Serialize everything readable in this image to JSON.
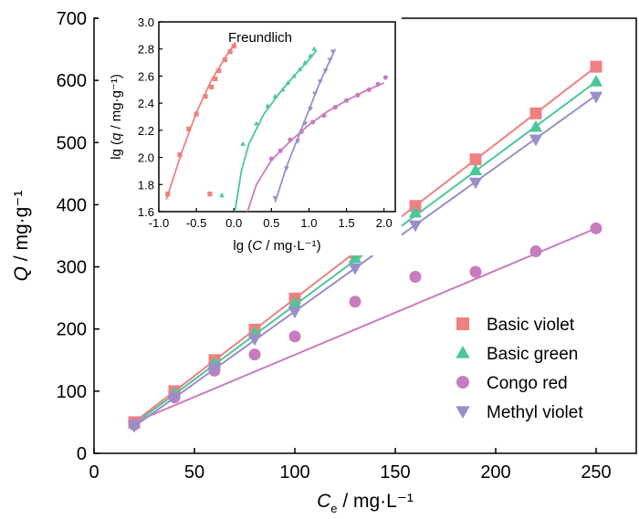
{
  "chart_data": [
    {
      "type": "scatter",
      "xlabel": {
        "main": "C",
        "sub": "e",
        "units": " / mg·L⁻¹"
      },
      "ylabel": {
        "main": "Q",
        "units": " / mg·g⁻¹"
      },
      "xlim": [
        0,
        270
      ],
      "ylim": [
        0,
        700
      ],
      "xticks": [
        0,
        50,
        100,
        150,
        200,
        250
      ],
      "yticks": [
        0,
        100,
        200,
        300,
        400,
        500,
        600,
        700
      ],
      "legend_position": "bottom-right",
      "series": [
        {
          "name": "Basic violet",
          "marker": "square",
          "color": "#f08080",
          "x": [
            20,
            40,
            60,
            80,
            100,
            130,
            160,
            190,
            220,
            250
          ],
          "y": [
            50,
            100,
            150,
            199,
            249,
            323,
            398,
            473,
            547,
            622
          ],
          "fit": [
            [
              20,
              50
            ],
            [
              250,
              622
            ]
          ]
        },
        {
          "name": "Basic green",
          "marker": "triangle-up",
          "color": "#4cc79a",
          "x": [
            20,
            40,
            60,
            80,
            100,
            130,
            160,
            190,
            220,
            250
          ],
          "y": [
            48,
            97,
            145,
            194,
            242,
            314,
            387,
            455,
            525,
            598
          ],
          "fit": [
            [
              20,
              47
            ],
            [
              250,
              598
            ]
          ]
        },
        {
          "name": "Congo red",
          "marker": "circle",
          "color": "#c97bbf",
          "x": [
            20,
            40,
            60,
            80,
            100,
            130,
            160,
            190,
            220,
            250
          ],
          "y": [
            46,
            90,
            133,
            159,
            188,
            244,
            284,
            292,
            325,
            362
          ],
          "fit": [
            [
              20,
              50
            ],
            [
              250,
              362
            ]
          ]
        },
        {
          "name": "Methyl violet",
          "marker": "triangle-down",
          "color": "#9a8ec8",
          "x": [
            20,
            40,
            60,
            80,
            100,
            130,
            160,
            190,
            220,
            250
          ],
          "y": [
            44,
            90,
            138,
            184,
            228,
            298,
            367,
            436,
            505,
            574
          ],
          "fit": [
            [
              20,
              43
            ],
            [
              250,
              576
            ]
          ]
        }
      ]
    },
    {
      "type": "scatter",
      "title": "Freundlich",
      "xlabel": {
        "main": "lg (",
        "italic": "C",
        "units": " / mg·L⁻¹)"
      },
      "ylabel": {
        "main": "lg (",
        "italic": "q",
        "units": " / mg·g⁻¹)"
      },
      "xlim": [
        -1.0,
        2.15
      ],
      "ylim": [
        1.6,
        3.0
      ],
      "xticks": [
        -1.0,
        -0.5,
        0.0,
        0.5,
        1.0,
        1.5,
        2.0
      ],
      "xtick_labels": [
        "-1.0",
        "-0.5",
        "0.0",
        "0.5",
        "1.0",
        "1.5",
        "2.0"
      ],
      "yticks": [
        1.6,
        1.8,
        2.0,
        2.2,
        2.4,
        2.6,
        2.8,
        3.0
      ],
      "ytick_labels": [
        "1.6",
        "1.8",
        "2.0",
        "2.2",
        "2.4",
        "2.6",
        "2.8",
        "3.0"
      ],
      "series": [
        {
          "name": "Basic violet",
          "marker": "square",
          "color": "#f08080",
          "x": [
            -0.88,
            -0.72,
            -0.6,
            -0.5,
            -0.38,
            -0.3,
            -0.25,
            -0.2,
            -0.12,
            -0.05,
            0.0,
            -0.32
          ],
          "y": [
            1.73,
            2.02,
            2.21,
            2.32,
            2.45,
            2.52,
            2.58,
            2.64,
            2.72,
            2.78,
            2.82,
            1.73
          ],
          "fit": [
            [
              -0.9,
              1.69
            ],
            [
              -0.7,
              2.03
            ],
            [
              -0.5,
              2.33
            ],
            [
              -0.3,
              2.57
            ],
            [
              -0.1,
              2.75
            ],
            [
              0.02,
              2.85
            ]
          ]
        },
        {
          "name": "Basic green",
          "marker": "triangle-up",
          "color": "#4cc79a",
          "x": [
            -0.16,
            0.12,
            0.3,
            0.45,
            0.55,
            0.65,
            0.72,
            0.8,
            0.88,
            0.95,
            1.02,
            1.07
          ],
          "y": [
            1.72,
            2.1,
            2.25,
            2.38,
            2.45,
            2.5,
            2.55,
            2.6,
            2.65,
            2.7,
            2.75,
            2.8
          ],
          "fit": [
            [
              0.0,
              1.55
            ],
            [
              0.1,
              1.9
            ],
            [
              0.2,
              2.1
            ],
            [
              0.4,
              2.32
            ],
            [
              0.6,
              2.47
            ],
            [
              0.8,
              2.6
            ],
            [
              1.0,
              2.72
            ],
            [
              1.1,
              2.79
            ]
          ]
        },
        {
          "name": "Congo red",
          "marker": "circle",
          "color": "#c97bbf",
          "x": [
            0.5,
            0.62,
            0.75,
            0.9,
            1.05,
            1.2,
            1.35,
            1.5,
            1.65,
            1.8,
            1.92,
            2.02
          ],
          "y": [
            1.99,
            2.05,
            2.13,
            2.19,
            2.26,
            2.31,
            2.37,
            2.42,
            2.46,
            2.5,
            2.54,
            2.59
          ],
          "fit": [
            [
              0.18,
              1.6
            ],
            [
              0.3,
              1.8
            ],
            [
              0.5,
              1.98
            ],
            [
              0.75,
              2.12
            ],
            [
              1.0,
              2.24
            ],
            [
              1.25,
              2.34
            ],
            [
              1.5,
              2.42
            ],
            [
              1.75,
              2.49
            ],
            [
              2.0,
              2.55
            ]
          ]
        },
        {
          "name": "Methyl violet",
          "marker": "triangle-down",
          "color": "#9a8ec8",
          "x": [
            0.55,
            0.7,
            0.85,
            0.95,
            1.02,
            1.08,
            1.15,
            1.22,
            1.28,
            1.32
          ],
          "y": [
            1.7,
            1.92,
            2.12,
            2.25,
            2.36,
            2.47,
            2.56,
            2.64,
            2.72,
            2.78
          ],
          "fit": [
            [
              0.55,
              1.67
            ],
            [
              0.7,
              1.93
            ],
            [
              0.85,
              2.14
            ],
            [
              1.0,
              2.35
            ],
            [
              1.15,
              2.56
            ],
            [
              1.3,
              2.74
            ],
            [
              1.35,
              2.8
            ]
          ]
        }
      ]
    }
  ]
}
